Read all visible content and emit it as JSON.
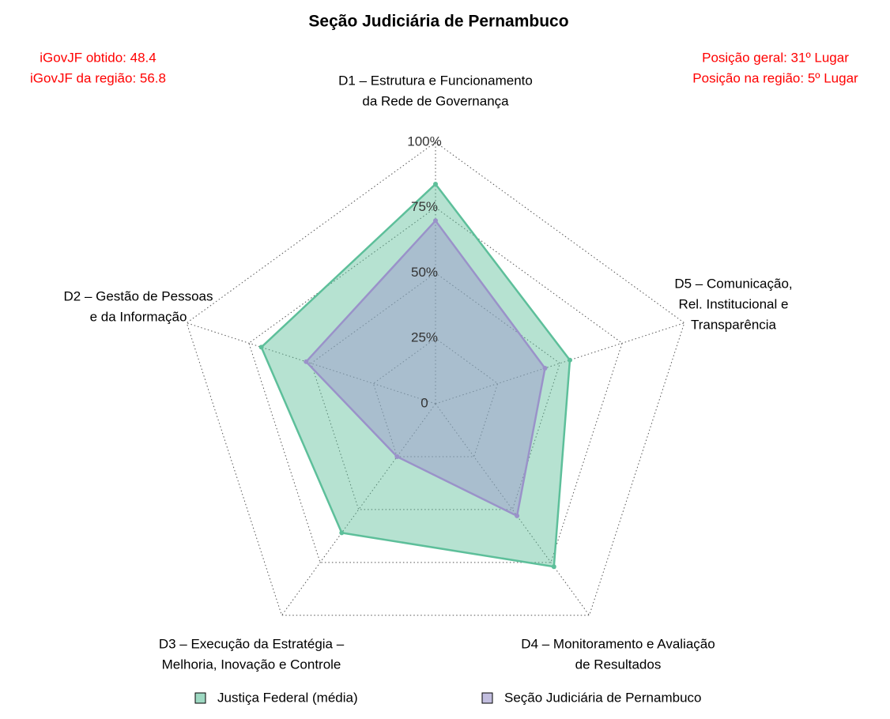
{
  "chart_data": {
    "type": "radar",
    "title": "Seção Judiciária de Pernambuco",
    "annotations": {
      "left": [
        "iGovJF obtido: 48.4",
        "iGovJF da região: 56.8"
      ],
      "right": [
        "Posição geral: 31º Lugar",
        "Posição na região: 5º Lugar"
      ]
    },
    "categories": [
      [
        "D1 – Estrutura e Funcionamento",
        "da Rede de Governança"
      ],
      [
        "D2 – Gestão de Pessoas",
        "e da Informação"
      ],
      [
        "D3 – Execução da Estratégia –",
        "Melhoria, Inovação e Controle"
      ],
      [
        "D4 – Monitoramento e Avaliação",
        "de Resultados"
      ],
      [
        "D5 – Comunicação,",
        "Rel. Institucional e",
        "Transparência"
      ]
    ],
    "series": [
      {
        "name": "Justiça Federal (média)",
        "color": "#5dbf9a",
        "values": [
          84,
          70,
          61,
          77,
          54
        ]
      },
      {
        "name": "Seção Judiciária de Pernambuco",
        "color": "#9a92c9",
        "values": [
          70,
          52,
          25,
          53,
          44
        ]
      }
    ],
    "ylim": [
      0,
      100
    ],
    "yticks": [
      0,
      {
        "value": 25,
        "label": "25%"
      },
      {
        "value": 50,
        "label": "50%"
      },
      {
        "value": 75,
        "label": "75%"
      },
      {
        "value": 100,
        "label": "100%"
      }
    ],
    "legend": "bottom"
  }
}
